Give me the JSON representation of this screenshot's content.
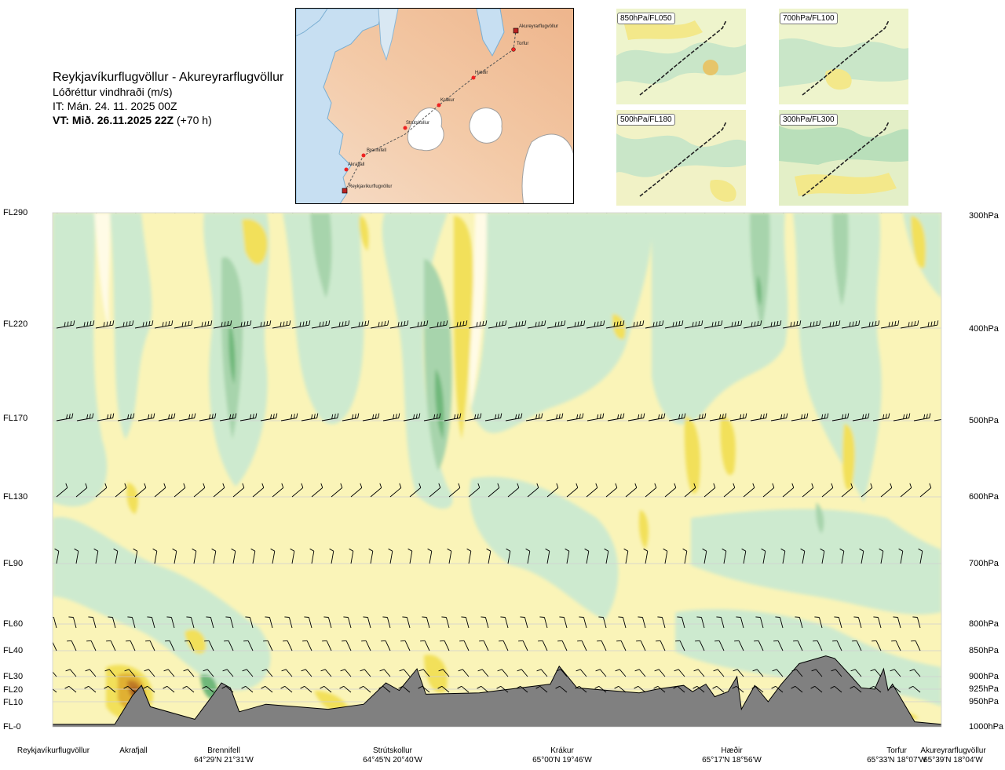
{
  "header": {
    "route": "Reykjavíkurflugvöllur - Akureyrarflugvöllur",
    "variable": "Lóðréttur vindhraði (m/s)",
    "issue_time": "IT: Mán. 24. 11. 2025 00Z",
    "valid_prefix": "VT: Mið. 26.11.2025 22Z",
    "valid_suffix": " (+70 h)"
  },
  "route_map": {
    "waypoints": [
      "Akureyrarflugvöllur",
      "Torfur",
      "Hæðir",
      "Krákur",
      "Strútskollur",
      "Brennifell",
      "Akrafjall",
      "Reykjavíkurflugvöllur"
    ]
  },
  "insets": [
    {
      "label": "850hPa/FL050"
    },
    {
      "label": "700hPa/FL100"
    },
    {
      "label": "500hPa/FL180"
    },
    {
      "label": "300hPa/FL300"
    }
  ],
  "levels": [
    {
      "fl": "FL290",
      "hpa": "300hPa"
    },
    {
      "fl": "FL220",
      "hpa": "400hPa"
    },
    {
      "fl": "FL170",
      "hpa": "500hPa"
    },
    {
      "fl": "FL130",
      "hpa": "600hPa"
    },
    {
      "fl": "FL90",
      "hpa": "700hPa"
    },
    {
      "fl": "FL60",
      "hpa": "800hPa"
    },
    {
      "fl": "FL40",
      "hpa": "850hPa"
    },
    {
      "fl": "FL30",
      "hpa": "900hPa"
    },
    {
      "fl": "FL20",
      "hpa": "925hPa"
    },
    {
      "fl": "FL10",
      "hpa": "950hPa"
    },
    {
      "fl": "FL-0",
      "hpa": "1000hPa"
    }
  ],
  "waypoints": [
    {
      "name": "Reykjavíkurflugvöllur",
      "coord": ""
    },
    {
      "name": "Akrafjall",
      "coord": ""
    },
    {
      "name": "Brennifell",
      "coord": "64°29'N 21°31'W"
    },
    {
      "name": "Strútskollur",
      "coord": "64°45'N 20°40'W"
    },
    {
      "name": "Krákur",
      "coord": "65°00'N 19°46'W"
    },
    {
      "name": "Hæðir",
      "coord": "65°17'N 18°56'W"
    },
    {
      "name": "Torfur",
      "coord": "65°33'N 18°07'W"
    },
    {
      "name": "Akureyrarflugvöllur",
      "coord": "65°39'N 18°04'W"
    }
  ],
  "chart_data": {
    "type": "heatmap",
    "title": "Reykjavíkurflugvöllur - Akureyrarflugvöllur",
    "variable": "Lóðréttur vindhraði (m/s)",
    "x_axis": "route waypoints (Reykjavíkurflugvöllur → Akureyrarflugvöllur)",
    "y_axis_left": [
      "FL-0",
      "FL10",
      "FL20",
      "FL30",
      "FL40",
      "FL60",
      "FL90",
      "FL130",
      "FL170",
      "FL220",
      "FL290"
    ],
    "y_axis_right": [
      "1000hPa",
      "950hPa",
      "925hPa",
      "900hPa",
      "850hPa",
      "800hPa",
      "700hPa",
      "600hPa",
      "500hPa",
      "400hPa",
      "300hPa"
    ],
    "colors": {
      "ascent_weak": "#cdeacf",
      "ascent_moderate": "#a7d4ac",
      "ascent_strong": "#6fb87a",
      "descent_weak": "#faf4b8",
      "descent_moderate": "#f2e05a",
      "descent_strong": "#e0b030",
      "descent_extreme": "#a05a1e",
      "near_zero": "#fffbe6",
      "terrain": "#808080"
    },
    "terrain_profile": [
      {
        "x": 0.0,
        "h_fl": 1
      },
      {
        "x": 0.07,
        "h_fl": 1
      },
      {
        "x": 0.09,
        "h_fl": 15
      },
      {
        "x": 0.1,
        "h_fl": 23
      },
      {
        "x": 0.11,
        "h_fl": 8
      },
      {
        "x": 0.16,
        "h_fl": 3
      },
      {
        "x": 0.18,
        "h_fl": 15
      },
      {
        "x": 0.19,
        "h_fl": 25
      },
      {
        "x": 0.2,
        "h_fl": 21
      },
      {
        "x": 0.21,
        "h_fl": 6
      },
      {
        "x": 0.24,
        "h_fl": 9
      },
      {
        "x": 0.31,
        "h_fl": 7
      },
      {
        "x": 0.35,
        "h_fl": 9
      },
      {
        "x": 0.375,
        "h_fl": 25
      },
      {
        "x": 0.39,
        "h_fl": 19
      },
      {
        "x": 0.41,
        "h_fl": 33
      },
      {
        "x": 0.42,
        "h_fl": 16
      },
      {
        "x": 0.48,
        "h_fl": 17
      },
      {
        "x": 0.56,
        "h_fl": 24
      },
      {
        "x": 0.57,
        "h_fl": 34
      },
      {
        "x": 0.59,
        "h_fl": 21
      },
      {
        "x": 0.66,
        "h_fl": 17
      },
      {
        "x": 0.68,
        "h_fl": 20
      },
      {
        "x": 0.71,
        "h_fl": 23
      },
      {
        "x": 0.72,
        "h_fl": 18
      },
      {
        "x": 0.735,
        "h_fl": 24
      },
      {
        "x": 0.745,
        "h_fl": 14
      },
      {
        "x": 0.76,
        "h_fl": 18
      },
      {
        "x": 0.77,
        "h_fl": 30
      },
      {
        "x": 0.775,
        "h_fl": 7
      },
      {
        "x": 0.79,
        "h_fl": 23
      },
      {
        "x": 0.805,
        "h_fl": 10
      },
      {
        "x": 0.82,
        "h_fl": 24
      },
      {
        "x": 0.84,
        "h_fl": 35
      },
      {
        "x": 0.87,
        "h_fl": 38
      },
      {
        "x": 0.88,
        "h_fl": 37
      },
      {
        "x": 0.9,
        "h_fl": 29
      },
      {
        "x": 0.91,
        "h_fl": 21
      },
      {
        "x": 0.925,
        "h_fl": 20
      },
      {
        "x": 0.935,
        "h_fl": 33
      },
      {
        "x": 0.94,
        "h_fl": 19
      },
      {
        "x": 0.945,
        "h_fl": 24
      },
      {
        "x": 0.95,
        "h_fl": 18
      },
      {
        "x": 0.97,
        "h_fl": 2
      },
      {
        "x": 1.0,
        "h_fl": 1
      }
    ],
    "grid": true,
    "legend": "none"
  }
}
